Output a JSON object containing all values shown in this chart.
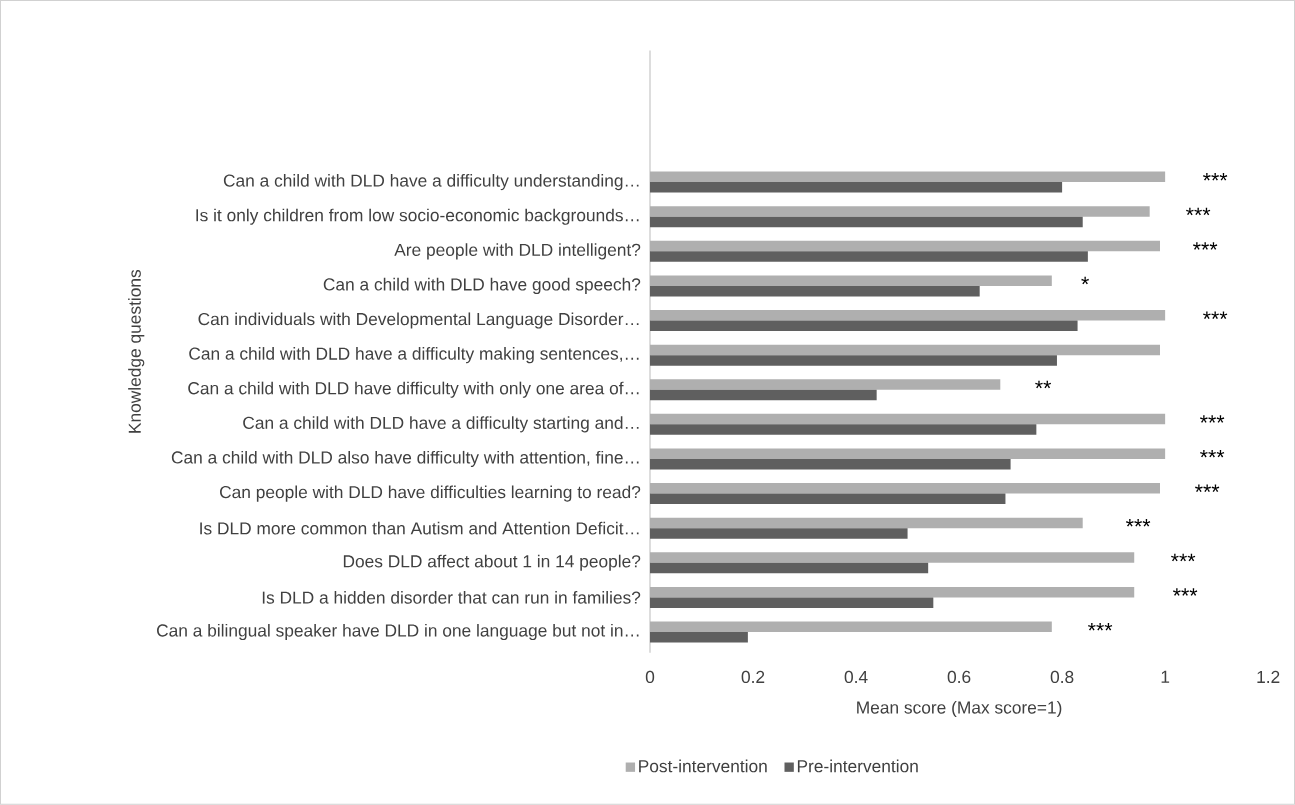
{
  "chart_data": {
    "type": "bar",
    "orientation": "horizontal",
    "xlabel": "Mean score (Max score=1)",
    "ylabel": "Knowledge questions",
    "categories": [
      "Can a child with DLD have a difficulty understanding…",
      "Is it only children from low socio-economic backgrounds…",
      "Are people with DLD intelligent?",
      "Can a child with DLD have good speech?",
      "Can individuals with Developmental Language Disorder…",
      "Can a child with DLD have a difficulty making sentences,…",
      "Can a child with DLD have difficulty with only one area of…",
      "Can a child with DLD have a difficulty starting and…",
      "Can a child with DLD also have difficulty with attention, fine…",
      "Can people with DLD have difficulties learning to read?",
      "Is DLD more common than Autism and Attention Deficit…",
      "Does DLD affect about 1 in 14 people?",
      "Is DLD a hidden disorder that can run in families?",
      "Can a bilingual speaker have DLD in one language but not in…"
    ],
    "series": [
      {
        "name": "Post-intervention",
        "color": "#afafaf",
        "values": [
          1.0,
          0.97,
          0.99,
          0.78,
          1.0,
          0.99,
          0.68,
          1.0,
          1.0,
          0.99,
          0.84,
          0.94,
          0.94,
          0.78
        ]
      },
      {
        "name": "Pre-intervention",
        "color": "#5f5f5f",
        "values": [
          0.8,
          0.84,
          0.85,
          0.64,
          0.83,
          0.79,
          0.44,
          0.75,
          0.7,
          0.69,
          0.5,
          0.54,
          0.55,
          0.19
        ]
      }
    ],
    "xlim": [
      0,
      1.2
    ],
    "xticks": [
      0,
      0.2,
      0.4,
      0.6,
      0.8,
      1,
      1.2
    ],
    "legend": "bottom",
    "annotations": [
      "***",
      "***",
      "***",
      "*",
      "***",
      "**",
      "***",
      "***",
      "***",
      "***",
      "***",
      "***",
      "***"
    ]
  }
}
